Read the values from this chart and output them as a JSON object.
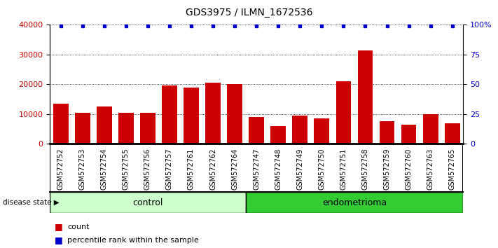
{
  "title": "GDS3975 / ILMN_1672536",
  "samples": [
    "GSM572752",
    "GSM572753",
    "GSM572754",
    "GSM572755",
    "GSM572756",
    "GSM572757",
    "GSM572761",
    "GSM572762",
    "GSM572764",
    "GSM572747",
    "GSM572748",
    "GSM572749",
    "GSM572750",
    "GSM572751",
    "GSM572758",
    "GSM572759",
    "GSM572760",
    "GSM572763",
    "GSM572765"
  ],
  "counts": [
    13500,
    10500,
    12500,
    10500,
    10500,
    19500,
    19000,
    20500,
    20000,
    9000,
    6000,
    9500,
    8500,
    21000,
    31500,
    7500,
    6500,
    10000,
    7000
  ],
  "n_control": 9,
  "n_endometrioma": 10,
  "bar_color": "#cc0000",
  "dot_color": "#0000cc",
  "background_chart": "#ffffff",
  "background_label": "#d0d0d0",
  "control_color_light": "#ccffcc",
  "control_color": "#ccffcc",
  "endometrioma_color": "#33cc33",
  "left_ylim": [
    0,
    40000
  ],
  "right_ylim": [
    0,
    100
  ],
  "left_yticks": [
    0,
    10000,
    20000,
    30000,
    40000
  ],
  "right_yticks": [
    0,
    25,
    50,
    75,
    100
  ],
  "right_yticklabels": [
    "0",
    "25",
    "50",
    "75",
    "100%"
  ],
  "disease_state_label": "disease state",
  "legend_count_label": "count",
  "legend_pct_label": "percentile rank within the sample"
}
